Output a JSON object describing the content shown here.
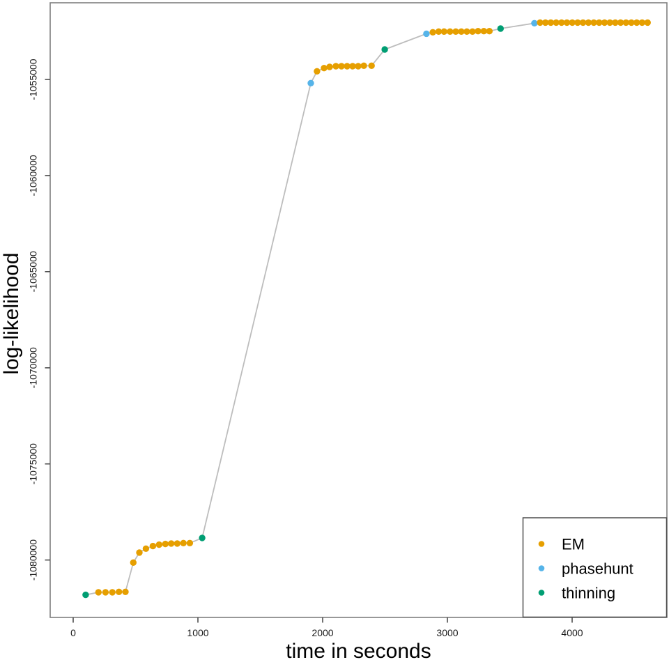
{
  "chart_data": {
    "type": "scatter",
    "title": "",
    "xlabel": "time in seconds",
    "ylabel": "log-likelihood",
    "x_ticks": [
      0,
      1000,
      2000,
      3000,
      4000
    ],
    "y_ticks": [
      -1080000,
      -1075000,
      -1070000,
      -1065000,
      -1060000,
      -1055000
    ],
    "xlim": [
      -180,
      4760
    ],
    "ylim": [
      -1083000,
      -1051000
    ],
    "grid": false,
    "line_color": "#bdbdbd",
    "legend": {
      "position": "bottom-right",
      "entries": [
        {
          "label": "EM",
          "color": "#E69F00"
        },
        {
          "label": "phasehunt",
          "color": "#56B4E9"
        },
        {
          "label": "thinning",
          "color": "#009E73"
        }
      ]
    },
    "columns": [
      "time_s",
      "log_likelihood",
      "series"
    ],
    "points": [
      [
        100,
        -1081812,
        "thinning"
      ],
      [
        203,
        -1081678,
        "EM"
      ],
      [
        259,
        -1081678,
        "EM"
      ],
      [
        314,
        -1081678,
        "EM"
      ],
      [
        367,
        -1081656,
        "EM"
      ],
      [
        419,
        -1081656,
        "EM"
      ],
      [
        482,
        -1080133,
        "EM"
      ],
      [
        531,
        -1079613,
        "EM"
      ],
      [
        583,
        -1079410,
        "EM"
      ],
      [
        639,
        -1079276,
        "EM"
      ],
      [
        689,
        -1079203,
        "EM"
      ],
      [
        739,
        -1079167,
        "EM"
      ],
      [
        786,
        -1079142,
        "EM"
      ],
      [
        834,
        -1079142,
        "EM"
      ],
      [
        884,
        -1079120,
        "EM"
      ],
      [
        935,
        -1079120,
        "EM"
      ],
      [
        1034,
        -1078852,
        "thinning"
      ],
      [
        1905,
        -1055192,
        "phasehunt"
      ],
      [
        1955,
        -1054576,
        "EM"
      ],
      [
        2011,
        -1054409,
        "EM"
      ],
      [
        2056,
        -1054348,
        "EM"
      ],
      [
        2106,
        -1054312,
        "EM"
      ],
      [
        2151,
        -1054312,
        "EM"
      ],
      [
        2196,
        -1054312,
        "EM"
      ],
      [
        2240,
        -1054312,
        "EM"
      ],
      [
        2285,
        -1054312,
        "EM"
      ],
      [
        2330,
        -1054286,
        "EM"
      ],
      [
        2392,
        -1054286,
        "EM"
      ],
      [
        2498,
        -1053442,
        "thinning"
      ],
      [
        2832,
        -1052620,
        "phasehunt"
      ],
      [
        2883,
        -1052547,
        "EM"
      ],
      [
        2930,
        -1052511,
        "EM"
      ],
      [
        2974,
        -1052511,
        "EM"
      ],
      [
        3021,
        -1052511,
        "EM"
      ],
      [
        3067,
        -1052511,
        "EM"
      ],
      [
        3112,
        -1052511,
        "EM"
      ],
      [
        3156,
        -1052511,
        "EM"
      ],
      [
        3201,
        -1052511,
        "EM"
      ],
      [
        3246,
        -1052489,
        "EM"
      ],
      [
        3292,
        -1052489,
        "EM"
      ],
      [
        3337,
        -1052489,
        "EM"
      ],
      [
        3426,
        -1052355,
        "thinning"
      ],
      [
        3698,
        -1052076,
        "phasehunt"
      ],
      [
        3743,
        -1052040,
        "EM"
      ],
      [
        3786,
        -1052040,
        "EM"
      ],
      [
        3829,
        -1052040,
        "EM"
      ],
      [
        3872,
        -1052040,
        "EM"
      ],
      [
        3915,
        -1052040,
        "EM"
      ],
      [
        3958,
        -1052040,
        "EM"
      ],
      [
        4001,
        -1052040,
        "EM"
      ],
      [
        4044,
        -1052040,
        "EM"
      ],
      [
        4087,
        -1052040,
        "EM"
      ],
      [
        4131,
        -1052040,
        "EM"
      ],
      [
        4174,
        -1052040,
        "EM"
      ],
      [
        4217,
        -1052040,
        "EM"
      ],
      [
        4260,
        -1052040,
        "EM"
      ],
      [
        4303,
        -1052040,
        "EM"
      ],
      [
        4346,
        -1052040,
        "EM"
      ],
      [
        4389,
        -1052040,
        "EM"
      ],
      [
        4432,
        -1052040,
        "EM"
      ],
      [
        4475,
        -1052040,
        "EM"
      ],
      [
        4518,
        -1052040,
        "EM"
      ],
      [
        4561,
        -1052040,
        "EM"
      ],
      [
        4605,
        -1052040,
        "EM"
      ]
    ]
  }
}
